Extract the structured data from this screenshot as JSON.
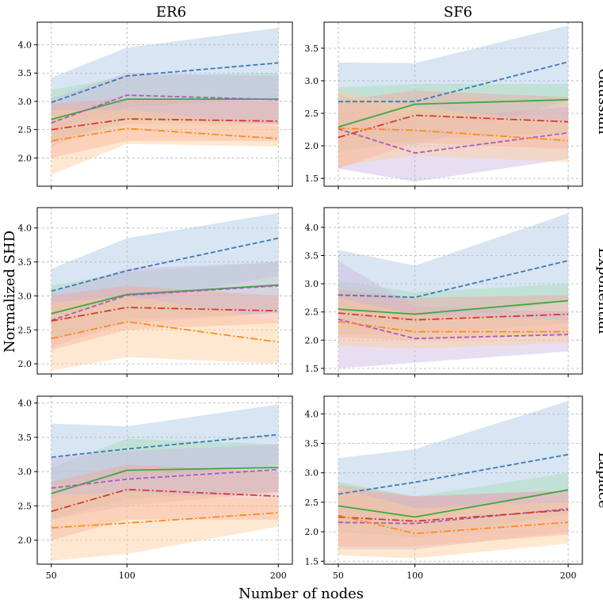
{
  "chart_data": {
    "type": "line",
    "xlabel": "Number of nodes",
    "ylabel": "Normalized SHD",
    "columns": [
      "ER6",
      "SF6"
    ],
    "rows": [
      "Gaussian",
      "Exponential",
      "Laplace"
    ],
    "x": [
      50,
      100,
      200
    ],
    "x_tick_labels": [
      "50",
      "100",
      "200"
    ],
    "grid": true,
    "series_styles": [
      {
        "id": "blue",
        "color": "#3b7ab8",
        "band": "#a9c6e2",
        "dash": "dashed"
      },
      {
        "id": "green",
        "color": "#3ca93c",
        "band": "#a6dcb6",
        "dash": "solid"
      },
      {
        "id": "purple",
        "color": "#a45ec0",
        "band": "#cdb6e3",
        "dash": "dashed"
      },
      {
        "id": "red",
        "color": "#d43a2e",
        "band": "#f0a79e",
        "dash": "dashdot"
      },
      {
        "id": "orange",
        "color": "#ff8a1a",
        "band": "#ffcc99",
        "dash": "dashdot"
      }
    ],
    "panels": [
      {
        "row": "Gaussian",
        "col": "ER6",
        "ylim": [
          1.5,
          4.4
        ],
        "yticks": [
          2.0,
          2.5,
          3.0,
          3.5,
          4.0
        ],
        "y_tick_labels": [
          "2.0",
          "2.5",
          "3.0",
          "3.5",
          "4.0"
        ],
        "series": [
          {
            "id": "blue",
            "mean": [
              2.98,
              3.45,
              3.68
            ],
            "lower": [
              2.5,
              2.9,
              3.05
            ],
            "upper": [
              3.42,
              3.95,
              4.3
            ]
          },
          {
            "id": "green",
            "mean": [
              2.68,
              3.04,
              3.04
            ],
            "lower": [
              2.3,
              2.6,
              2.6
            ],
            "upper": [
              3.2,
              3.45,
              3.5
            ]
          },
          {
            "id": "purple",
            "mean": [
              2.62,
              3.11,
              3.03
            ],
            "lower": [
              2.2,
              2.7,
              2.6
            ],
            "upper": [
              3.05,
              3.5,
              3.45
            ]
          },
          {
            "id": "red",
            "mean": [
              2.5,
              2.69,
              2.65
            ],
            "lower": [
              2.0,
              2.3,
              2.3
            ],
            "upper": [
              2.95,
              3.05,
              3.0
            ]
          },
          {
            "id": "orange",
            "mean": [
              2.3,
              2.52,
              2.34
            ],
            "lower": [
              1.7,
              2.25,
              2.2
            ],
            "upper": [
              2.85,
              2.85,
              2.55
            ]
          }
        ]
      },
      {
        "row": "Gaussian",
        "col": "SF6",
        "ylim": [
          1.38,
          3.9
        ],
        "yticks": [
          1.5,
          2.0,
          2.5,
          3.0,
          3.5
        ],
        "y_tick_labels": [
          "1.5",
          "2.0",
          "2.5",
          "3.0",
          "3.5"
        ],
        "series": [
          {
            "id": "blue",
            "mean": [
              2.68,
              2.68,
              3.29
            ],
            "lower": [
              2.2,
              2.0,
              2.7
            ],
            "upper": [
              3.28,
              3.27,
              3.85
            ]
          },
          {
            "id": "green",
            "mean": [
              2.29,
              2.64,
              2.71
            ],
            "lower": [
              1.9,
              2.1,
              2.2
            ],
            "upper": [
              2.9,
              2.95,
              2.95
            ]
          },
          {
            "id": "purple",
            "mean": [
              2.26,
              1.89,
              2.2
            ],
            "lower": [
              1.65,
              1.45,
              1.8
            ],
            "upper": [
              2.8,
              2.4,
              2.6
            ]
          },
          {
            "id": "red",
            "mean": [
              2.13,
              2.47,
              2.37
            ],
            "lower": [
              1.65,
              2.05,
              1.95
            ],
            "upper": [
              2.7,
              2.85,
              2.75
            ]
          },
          {
            "id": "orange",
            "mean": [
              2.27,
              2.24,
              2.08
            ],
            "lower": [
              1.7,
              1.85,
              1.75
            ],
            "upper": [
              2.85,
              2.6,
              2.35
            ]
          }
        ]
      },
      {
        "row": "Exponential",
        "col": "ER6",
        "ylim": [
          1.85,
          4.3
        ],
        "yticks": [
          2.0,
          2.5,
          3.0,
          3.5,
          4.0
        ],
        "y_tick_labels": [
          "2.0",
          "2.5",
          "3.0",
          "3.5",
          "4.0"
        ],
        "series": [
          {
            "id": "blue",
            "mean": [
              3.07,
              3.37,
              3.85
            ],
            "lower": [
              2.7,
              2.9,
              3.3
            ],
            "upper": [
              3.4,
              3.85,
              4.22
            ]
          },
          {
            "id": "green",
            "mean": [
              2.74,
              3.02,
              3.16
            ],
            "lower": [
              2.35,
              2.65,
              2.75
            ],
            "upper": [
              3.15,
              3.35,
              3.5
            ]
          },
          {
            "id": "purple",
            "mean": [
              2.64,
              3.01,
              3.15
            ],
            "lower": [
              2.25,
              2.6,
              2.75
            ],
            "upper": [
              3.05,
              3.4,
              3.5
            ]
          },
          {
            "id": "red",
            "mean": [
              2.63,
              2.83,
              2.78
            ],
            "lower": [
              2.2,
              2.5,
              2.6
            ],
            "upper": [
              3.0,
              3.15,
              3.0
            ]
          },
          {
            "id": "orange",
            "mean": [
              2.37,
              2.62,
              2.32
            ],
            "lower": [
              1.9,
              2.1,
              2.0
            ],
            "upper": [
              2.9,
              3.0,
              2.65
            ]
          }
        ]
      },
      {
        "row": "Exponential",
        "col": "SF6",
        "ylim": [
          1.4,
          4.35
        ],
        "yticks": [
          1.5,
          2.0,
          2.5,
          3.0,
          3.5,
          4.0
        ],
        "y_tick_labels": [
          "1.5",
          "2.0",
          "2.5",
          "3.0",
          "3.5",
          "4.0"
        ],
        "series": [
          {
            "id": "blue",
            "mean": [
              2.8,
              2.76,
              3.41
            ],
            "lower": [
              2.35,
              2.3,
              2.7
            ],
            "upper": [
              3.6,
              3.32,
              4.25
            ]
          },
          {
            "id": "green",
            "mean": [
              2.55,
              2.46,
              2.7
            ],
            "lower": [
              2.1,
              2.1,
              2.3
            ],
            "upper": [
              3.05,
              2.85,
              3.0
            ]
          },
          {
            "id": "purple",
            "mean": [
              2.37,
              2.03,
              2.1
            ],
            "lower": [
              1.5,
              1.6,
              1.8
            ],
            "upper": [
              3.4,
              2.6,
              2.5
            ]
          },
          {
            "id": "red",
            "mean": [
              2.48,
              2.36,
              2.46
            ],
            "lower": [
              2.05,
              2.0,
              2.1
            ],
            "upper": [
              2.9,
              2.75,
              2.8
            ]
          },
          {
            "id": "orange",
            "mean": [
              2.33,
              2.15,
              2.15
            ],
            "lower": [
              1.9,
              1.85,
              1.95
            ],
            "upper": [
              2.75,
              2.45,
              2.35
            ]
          }
        ]
      },
      {
        "row": "Laplace",
        "col": "ER6",
        "ylim": [
          1.65,
          4.1
        ],
        "yticks": [
          2.0,
          2.5,
          3.0,
          3.5,
          4.0
        ],
        "y_tick_labels": [
          "2.0",
          "2.5",
          "3.0",
          "3.5",
          "4.0"
        ],
        "series": [
          {
            "id": "blue",
            "mean": [
              3.21,
              3.33,
              3.54
            ],
            "lower": [
              2.8,
              2.9,
              3.1
            ],
            "upper": [
              3.7,
              3.66,
              3.98
            ]
          },
          {
            "id": "green",
            "mean": [
              2.68,
              3.02,
              3.06
            ],
            "lower": [
              2.3,
              2.6,
              2.7
            ],
            "upper": [
              3.05,
              3.48,
              3.4
            ]
          },
          {
            "id": "purple",
            "mean": [
              2.76,
              2.89,
              3.03
            ],
            "lower": [
              2.3,
              2.5,
              2.7
            ],
            "upper": [
              3.2,
              3.3,
              3.4
            ]
          },
          {
            "id": "red",
            "mean": [
              2.42,
              2.74,
              2.64
            ],
            "lower": [
              2.0,
              2.3,
              2.3
            ],
            "upper": [
              2.85,
              3.1,
              3.0
            ]
          },
          {
            "id": "orange",
            "mean": [
              2.18,
              2.25,
              2.4
            ],
            "lower": [
              1.7,
              1.8,
              2.2
            ],
            "upper": [
              2.65,
              2.7,
              2.6
            ]
          }
        ]
      },
      {
        "row": "Laplace",
        "col": "SF6",
        "ylim": [
          1.45,
          4.3
        ],
        "yticks": [
          1.5,
          2.0,
          2.5,
          3.0,
          3.5,
          4.0
        ],
        "y_tick_labels": [
          "1.5",
          "2.0",
          "2.5",
          "3.0",
          "3.5",
          "4.0"
        ],
        "series": [
          {
            "id": "blue",
            "mean": [
              2.64,
              2.84,
              3.31
            ],
            "lower": [
              2.1,
              2.3,
              2.7
            ],
            "upper": [
              3.25,
              3.4,
              4.22
            ]
          },
          {
            "id": "green",
            "mean": [
              2.44,
              2.25,
              2.71
            ],
            "lower": [
              2.0,
              1.9,
              2.3
            ],
            "upper": [
              2.85,
              2.6,
              3.0
            ]
          },
          {
            "id": "purple",
            "mean": [
              2.16,
              2.14,
              2.39
            ],
            "lower": [
              1.7,
              1.7,
              2.0
            ],
            "upper": [
              2.7,
              2.6,
              2.7
            ]
          },
          {
            "id": "red",
            "mean": [
              2.25,
              2.18,
              2.37
            ],
            "lower": [
              1.75,
              1.75,
              1.95
            ],
            "upper": [
              2.8,
              2.6,
              2.7
            ]
          },
          {
            "id": "orange",
            "mean": [
              2.28,
              1.97,
              2.16
            ],
            "lower": [
              1.6,
              1.55,
              1.8
            ],
            "upper": [
              2.75,
              2.4,
              2.5
            ]
          }
        ]
      }
    ]
  }
}
